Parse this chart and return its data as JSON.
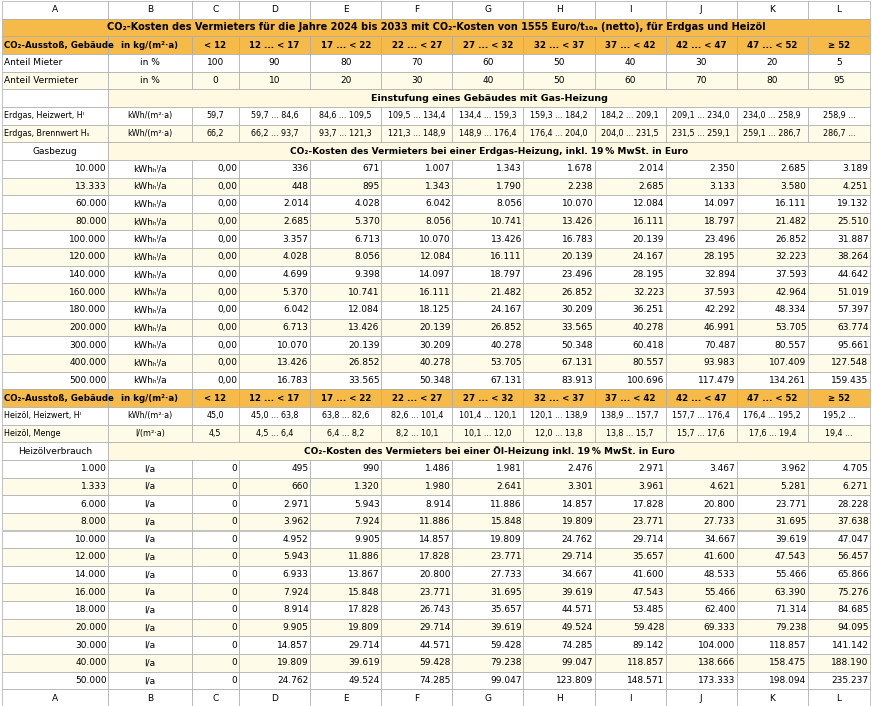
{
  "title_row": "CO₂-Kosten des Vermieters für die Jahre 2024 bis 2033 mit CO₂-Kosten von 1555 Euro/t₁₀ₐ (netto), für Erdgas und Heizöl",
  "col_headers": [
    "A",
    "B",
    "C",
    "D",
    "E",
    "F",
    "G",
    "H",
    "I",
    "J",
    "K",
    "L"
  ],
  "header_row2": [
    "CO₂-Ausstoß, Gebäude",
    "in kg/(m²·a)",
    "< 12",
    "12 ... < 17",
    "17 ... < 22",
    "22 ... < 27",
    "27 ... < 32",
    "32 ... < 37",
    "37 ... < 42",
    "42 ... < 47",
    "47 ... < 52",
    "≥ 52"
  ],
  "row3": [
    "Anteil Mieter",
    "in %",
    "100",
    "90",
    "80",
    "70",
    "60",
    "50",
    "40",
    "30",
    "20",
    "5"
  ],
  "row4": [
    "Anteil Vermieter",
    "in %",
    "0",
    "10",
    "20",
    "30",
    "40",
    "50",
    "60",
    "70",
    "80",
    "95"
  ],
  "row5_span": "Einstufung eines Gebäudes mit Gas-Heizung",
  "row6": [
    "Erdgas, Heizwert, Hᴵ",
    "kWh/(m²·a)",
    "59,7",
    "59,7 ... 84,6",
    "84,6 ... 109,5",
    "109,5 ... 134,4",
    "134,4 ... 159,3",
    "159,3 ... 184,2",
    "184,2 ... 209,1",
    "209,1 ... 234,0",
    "234,0 ... 258,9",
    "258,9 ..."
  ],
  "row7": [
    "Erdgas, Brennwert Hₛ",
    "kWh/(m²·a)",
    "66,2",
    "66,2 ... 93,7",
    "93,7 ... 121,3",
    "121,3 ... 148,9",
    "148,9 ... 176,4",
    "176,4 ... 204,0",
    "204,0 ... 231,5",
    "231,5 ... 259,1",
    "259,1 ... 286,7",
    "286,7 ..."
  ],
  "row8_span": "CO₂-Kosten des Vermieters bei einer Erdgas-Heizung, inkl. 19 % MwSt. in Euro",
  "gas_col0_label": "Gasbezug",
  "gas_rows": [
    [
      "10.000",
      "kWhₕᴵ/a",
      "0,00",
      "336",
      "671",
      "1.007",
      "1.343",
      "1.678",
      "2.014",
      "2.350",
      "2.685",
      "3.189"
    ],
    [
      "13.333",
      "kWhₕᴵ/a",
      "0,00",
      "448",
      "895",
      "1.343",
      "1.790",
      "2.238",
      "2.685",
      "3.133",
      "3.580",
      "4.251"
    ],
    [
      "60.000",
      "kWhₕᴵ/a",
      "0,00",
      "2.014",
      "4.028",
      "6.042",
      "8.056",
      "10.070",
      "12.084",
      "14.097",
      "16.111",
      "19.132"
    ],
    [
      "80.000",
      "kWhₕᴵ/a",
      "0,00",
      "2.685",
      "5.370",
      "8.056",
      "10.741",
      "13.426",
      "16.111",
      "18.797",
      "21.482",
      "25.510"
    ],
    [
      "100.000",
      "kWhₕᴵ/a",
      "0,00",
      "3.357",
      "6.713",
      "10.070",
      "13.426",
      "16.783",
      "20.139",
      "23.496",
      "26.852",
      "31.887"
    ],
    [
      "120.000",
      "kWhₕᴵ/a",
      "0,00",
      "4.028",
      "8.056",
      "12.084",
      "16.111",
      "20.139",
      "24.167",
      "28.195",
      "32.223",
      "38.264"
    ],
    [
      "140.000",
      "kWhₕᴵ/a",
      "0,00",
      "4.699",
      "9.398",
      "14.097",
      "18.797",
      "23.496",
      "28.195",
      "32.894",
      "37.593",
      "44.642"
    ],
    [
      "160.000",
      "kWhₕᴵ/a",
      "0,00",
      "5.370",
      "10.741",
      "16.111",
      "21.482",
      "26.852",
      "32.223",
      "37.593",
      "42.964",
      "51.019"
    ],
    [
      "180.000",
      "kWhₕᴵ/a",
      "0,00",
      "6.042",
      "12.084",
      "18.125",
      "24.167",
      "30.209",
      "36.251",
      "42.292",
      "48.334",
      "57.397"
    ],
    [
      "200.000",
      "kWhₕᴵ/a",
      "0,00",
      "6.713",
      "13.426",
      "20.139",
      "26.852",
      "33.565",
      "40.278",
      "46.991",
      "53.705",
      "63.774"
    ],
    [
      "300.000",
      "kWhₕᴵ/a",
      "0,00",
      "10.070",
      "20.139",
      "30.209",
      "40.278",
      "50.348",
      "60.418",
      "70.487",
      "80.557",
      "95.661"
    ],
    [
      "400.000",
      "kWhₕᴵ/a",
      "0,00",
      "13.426",
      "26.852",
      "40.278",
      "53.705",
      "67.131",
      "80.557",
      "93.983",
      "107.409",
      "127.548"
    ],
    [
      "500.000",
      "kWhₕᴵ/a",
      "0,00",
      "16.783",
      "33.565",
      "50.348",
      "67.131",
      "83.913",
      "100.696",
      "117.479",
      "134.261",
      "159.435"
    ]
  ],
  "header_row22": [
    "CO₂-Ausstoß, Gebäude",
    "in kg/(m²·a)",
    "< 12",
    "12 ... < 17",
    "17 ... < 22",
    "22 ... < 27",
    "27 ... < 32",
    "32 ... < 37",
    "37 ... < 42",
    "42 ... < 47",
    "47 ... < 52",
    "≥ 52"
  ],
  "row23": [
    "Heizöl, Heizwert, Hᴵ",
    "kWh/(m²·a)",
    "45,0",
    "45,0 ... 63,8",
    "63,8 ... 82,6",
    "82,6 ... 101,4",
    "101,4 ... 120,1",
    "120,1 ... 138,9",
    "138,9 ... 157,7",
    "157,7 ... 176,4",
    "176,4 ... 195,2",
    "195,2 ..."
  ],
  "row24": [
    "Heizöl, Menge",
    "l/(m²·a)",
    "4,5",
    "4,5 ... 6,4",
    "6,4 ... 8,2",
    "8,2 ... 10,1",
    "10,1 ... 12,0",
    "12,0 ... 13,8",
    "13,8 ... 15,7",
    "15,7 ... 17,6",
    "17,6 ... 19,4",
    "19,4 ..."
  ],
  "row25_span": "CO₂-Kosten des Vermieters bei einer Öl-Heizung inkl. 19 % MwSt. in Euro",
  "oil_col0_label": "Heizölverbrauch",
  "oil_rows": [
    [
      "1.000",
      "l/a",
      "0",
      "495",
      "990",
      "1.486",
      "1.981",
      "2.476",
      "2.971",
      "3.467",
      "3.962",
      "4.705"
    ],
    [
      "1.333",
      "l/a",
      "0",
      "660",
      "1.320",
      "1.980",
      "2.641",
      "3.301",
      "3.961",
      "4.621",
      "5.281",
      "6.271"
    ],
    [
      "6.000",
      "l/a",
      "0",
      "2.971",
      "5.943",
      "8.914",
      "11.886",
      "14.857",
      "17.828",
      "20.800",
      "23.771",
      "28.228"
    ],
    [
      "8.000",
      "l/a",
      "0",
      "3.962",
      "7.924",
      "11.886",
      "15.848",
      "19.809",
      "23.771",
      "27.733",
      "31.695",
      "37.638"
    ],
    [
      "10.000",
      "l/a",
      "0",
      "4.952",
      "9.905",
      "14.857",
      "19.809",
      "24.762",
      "29.714",
      "34.667",
      "39.619",
      "47.047"
    ],
    [
      "12.000",
      "l/a",
      "0",
      "5.943",
      "11.886",
      "17.828",
      "23.771",
      "29.714",
      "35.657",
      "41.600",
      "47.543",
      "56.457"
    ],
    [
      "14.000",
      "l/a",
      "0",
      "6.933",
      "13.867",
      "20.800",
      "27.733",
      "34.667",
      "41.600",
      "48.533",
      "55.466",
      "65.866"
    ],
    [
      "16.000",
      "l/a",
      "0",
      "7.924",
      "15.848",
      "23.771",
      "31.695",
      "39.619",
      "47.543",
      "55.466",
      "63.390",
      "75.276"
    ],
    [
      "18.000",
      "l/a",
      "0",
      "8.914",
      "17.828",
      "26.743",
      "35.657",
      "44.571",
      "53.485",
      "62.400",
      "71.314",
      "84.685"
    ],
    [
      "20.000",
      "l/a",
      "0",
      "9.905",
      "19.809",
      "29.714",
      "39.619",
      "49.524",
      "59.428",
      "69.333",
      "79.238",
      "94.095"
    ],
    [
      "30.000",
      "l/a",
      "0",
      "14.857",
      "29.714",
      "44.571",
      "59.428",
      "74.285",
      "89.142",
      "104.000",
      "118.857",
      "141.142"
    ],
    [
      "40.000",
      "l/a",
      "0",
      "19.809",
      "39.619",
      "59.428",
      "79.238",
      "99.047",
      "118.857",
      "138.666",
      "158.475",
      "188.190"
    ],
    [
      "50.000",
      "l/a",
      "0",
      "24.762",
      "49.524",
      "74.285",
      "99.047",
      "123.809",
      "148.571",
      "173.333",
      "198.094",
      "235.237"
    ]
  ],
  "colors": {
    "orange_header": "#F5BA47",
    "light_yellow": "#FEFCE8",
    "white": "#FFFFFF",
    "light_orange_span": "#FEF9E0",
    "border": "#AAAAAA",
    "text_dark": "#000000"
  }
}
